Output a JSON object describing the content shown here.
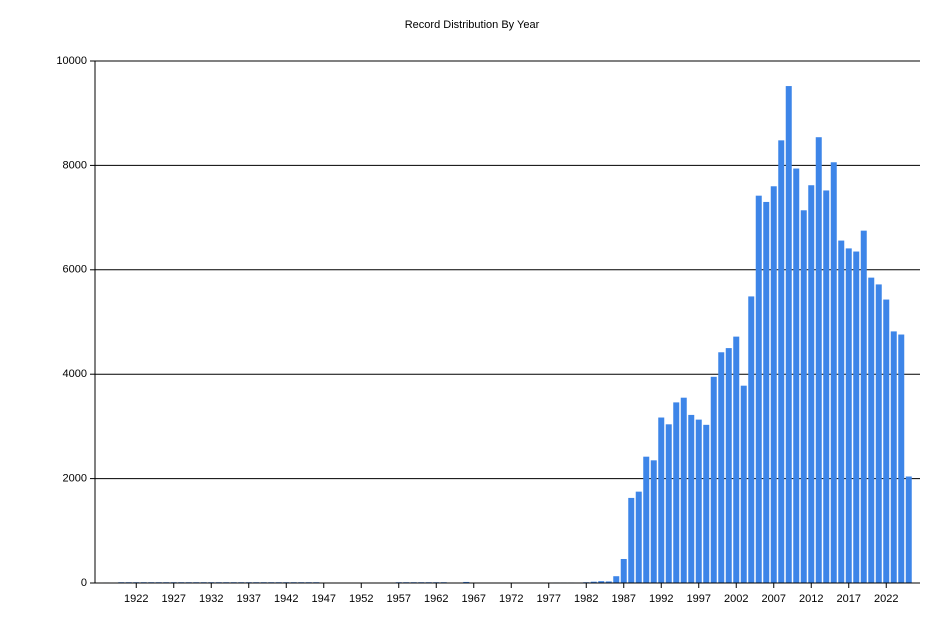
{
  "chart_data": {
    "type": "bar",
    "title": "Record Distribution By Year",
    "x": [
      1918,
      1920,
      1921,
      1922,
      1923,
      1924,
      1925,
      1926,
      1927,
      1928,
      1929,
      1930,
      1931,
      1932,
      1933,
      1934,
      1935,
      1936,
      1937,
      1938,
      1939,
      1940,
      1941,
      1942,
      1943,
      1944,
      1945,
      1946,
      1957,
      1958,
      1959,
      1960,
      1961,
      1962,
      1963,
      1966,
      1978,
      1979,
      1980,
      1982,
      1983,
      1984,
      1985,
      1986,
      1987,
      1988,
      1989,
      1990,
      1991,
      1992,
      1993,
      1994,
      1995,
      1996,
      1997,
      1998,
      1999,
      2000,
      2001,
      2002,
      2003,
      2004,
      2005,
      2006,
      2007,
      2008,
      2009,
      2010,
      2011,
      2012,
      2013,
      2014,
      2015,
      2016,
      2017,
      2018,
      2019,
      2020,
      2021,
      2022,
      2023,
      2024,
      2025
    ],
    "values": [
      10,
      15,
      15,
      15,
      15,
      15,
      15,
      15,
      15,
      15,
      15,
      15,
      15,
      15,
      15,
      15,
      15,
      15,
      15,
      15,
      15,
      15,
      15,
      15,
      15,
      15,
      15,
      15,
      15,
      15,
      15,
      15,
      15,
      15,
      15,
      20,
      10,
      10,
      10,
      15,
      25,
      35,
      30,
      130,
      460,
      1630,
      1750,
      2420,
      2350,
      3170,
      3040,
      3460,
      3550,
      3220,
      3130,
      3030,
      3950,
      4420,
      4500,
      4720,
      3780,
      5490,
      7420,
      7300,
      7600,
      8480,
      9520,
      7940,
      7140,
      7620,
      8540,
      7520,
      8060,
      6560,
      6410,
      6350,
      6750,
      5850,
      5720,
      5430,
      4820,
      4760,
      2040
    ],
    "color": "#3d85e8",
    "xlim": [
      1916.5,
      2026.5
    ],
    "xticks": [
      1922,
      1927,
      1932,
      1937,
      1942,
      1947,
      1952,
      1957,
      1962,
      1967,
      1972,
      1977,
      1982,
      1987,
      1992,
      1997,
      2002,
      2007,
      2012,
      2017,
      2022
    ],
    "ylim": [
      0,
      10000
    ],
    "yticks": [
      0,
      2000,
      4000,
      6000,
      8000,
      10000
    ],
    "grid": true
  }
}
